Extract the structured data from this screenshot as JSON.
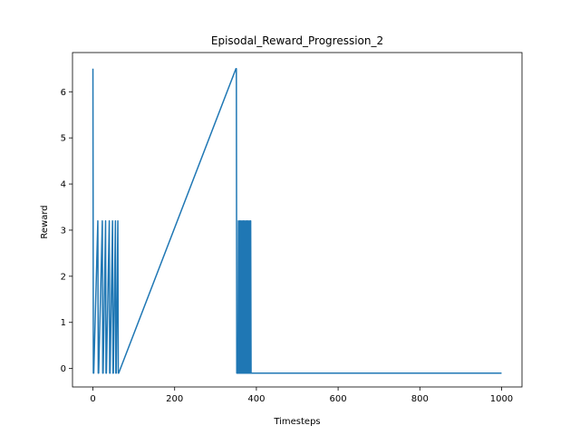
{
  "chart_data": {
    "type": "line",
    "title": "Episodal_Reward_Progression_2",
    "xlabel": "Timesteps",
    "ylabel": "Reward",
    "xlim": [
      -50,
      1050
    ],
    "ylim": [
      -0.4,
      6.85
    ],
    "xticks": [
      0,
      200,
      400,
      600,
      800,
      1000
    ],
    "yticks": [
      0,
      1,
      2,
      3,
      4,
      5,
      6
    ],
    "grid": false,
    "legend": "none",
    "series": [
      {
        "color": "#1f77b4",
        "x": [
          0,
          1,
          2,
          12,
          13,
          14,
          23,
          24,
          25,
          31,
          32,
          33,
          40,
          41,
          42,
          48,
          49,
          50,
          55,
          56,
          57,
          61,
          62,
          63,
          350,
          351,
          352,
          353,
          354,
          355,
          356,
          357,
          358,
          359,
          360,
          361,
          362,
          363,
          364,
          365,
          366,
          367,
          368,
          369,
          370,
          371,
          372,
          373,
          374,
          375,
          376,
          377,
          378,
          379,
          380,
          381,
          382,
          383,
          384,
          385,
          386,
          387,
          388,
          389,
          390,
          1000
        ],
        "y": [
          6.5,
          -0.1,
          -0.1,
          3.2,
          -0.1,
          -0.1,
          3.2,
          -0.1,
          -0.1,
          3.2,
          -0.1,
          -0.1,
          3.2,
          -0.1,
          -0.1,
          3.2,
          -0.1,
          -0.1,
          3.2,
          -0.1,
          -0.1,
          3.2,
          -0.1,
          -0.1,
          6.5,
          6.5,
          -0.1,
          -0.1,
          -0.1,
          -0.1,
          3.2,
          -0.1,
          -0.1,
          3.2,
          -0.1,
          -0.1,
          3.2,
          -0.1,
          -0.1,
          3.2,
          -0.1,
          -0.1,
          3.2,
          -0.1,
          -0.1,
          3.2,
          -0.1,
          -0.1,
          3.2,
          -0.1,
          -0.1,
          3.2,
          -0.1,
          -0.1,
          3.2,
          -0.1,
          -0.1,
          3.2,
          -0.1,
          -0.1,
          3.2,
          -0.1,
          -0.1,
          -0.1,
          -0.1,
          -0.1
        ]
      }
    ]
  }
}
